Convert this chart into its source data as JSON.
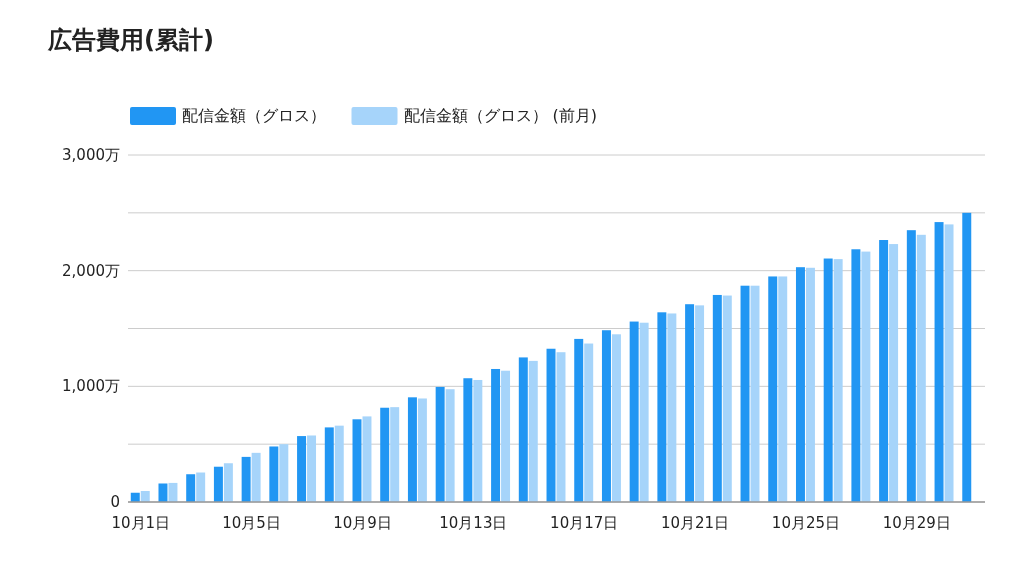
{
  "chart_data": {
    "type": "bar",
    "title": "広告費用(累計)",
    "categories": [
      "10月1日",
      null,
      null,
      null,
      "10月5日",
      null,
      null,
      null,
      "10月9日",
      null,
      null,
      null,
      "10月13日",
      null,
      null,
      null,
      "10月17日",
      null,
      null,
      null,
      "10月21日",
      null,
      null,
      null,
      "10月25日",
      null,
      null,
      null,
      "10月29日",
      null,
      null
    ],
    "series": [
      {
        "name": "配信金額（グロス）",
        "color": "#2196f3",
        "values": [
          80,
          160,
          240,
          305,
          390,
          480,
          570,
          645,
          715,
          815,
          905,
          995,
          1070,
          1150,
          1250,
          1325,
          1410,
          1485,
          1560,
          1640,
          1710,
          1790,
          1870,
          1950,
          2030,
          2105,
          2185,
          2265,
          2350,
          2420,
          2500
        ]
      },
      {
        "name": "配信金額（グロス） (前月)",
        "color": "#a6d4fa",
        "values": [
          95,
          165,
          255,
          335,
          425,
          500,
          575,
          660,
          740,
          820,
          895,
          975,
          1055,
          1135,
          1220,
          1295,
          1370,
          1450,
          1550,
          1630,
          1700,
          1785,
          1870,
          1950,
          2025,
          2100,
          2165,
          2230,
          2310,
          2400,
          null
        ]
      }
    ],
    "ylim": [
      0,
      3000
    ],
    "yticks": [
      0,
      {
        "value": 500,
        "label": null
      },
      {
        "value": 1000,
        "label": "1,000万"
      },
      {
        "value": 1500,
        "label": null
      },
      {
        "value": 2000,
        "label": "2,000万"
      },
      {
        "value": 2500,
        "label": null
      },
      {
        "value": 3000,
        "label": "3,000万"
      }
    ],
    "grid": "y",
    "legend": "top left"
  }
}
